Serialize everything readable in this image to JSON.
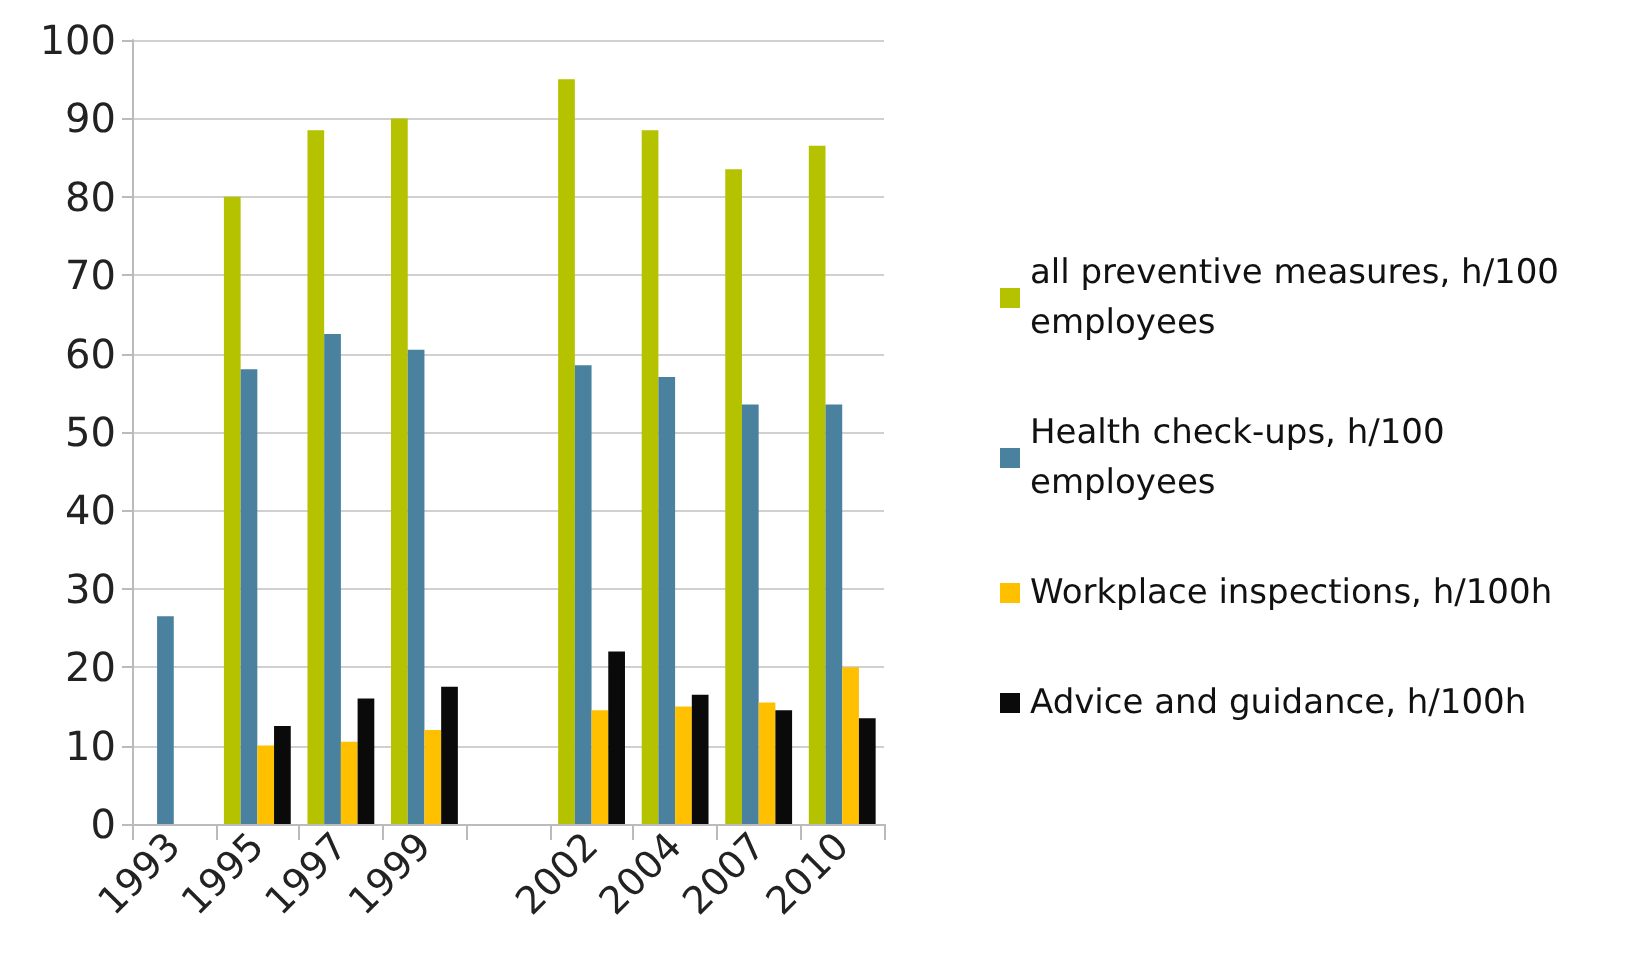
{
  "chart_data": {
    "type": "bar",
    "categories": [
      "1993",
      "1995",
      "1997",
      "1999",
      null,
      "2002",
      "2004",
      "2007",
      "2010"
    ],
    "series": [
      {
        "name": "all preventive measures, h/100 employees",
        "color": "#b5c200",
        "values": [
          null,
          80,
          88.5,
          90,
          null,
          95,
          88.5,
          83.5,
          86.5
        ]
      },
      {
        "name": "Health check-ups, h/100 employees",
        "color": "#4a819e",
        "values": [
          26.5,
          58,
          62.5,
          60.5,
          null,
          58.5,
          57,
          53.5,
          53.5
        ]
      },
      {
        "name": "Workplace inspections, h/100h",
        "color": "#ffc000",
        "values": [
          null,
          10,
          10.5,
          12,
          null,
          14.5,
          15,
          15.5,
          20
        ]
      },
      {
        "name": "Advice and guidance, h/100h",
        "color": "#0a0a0a",
        "values": [
          null,
          12.5,
          16,
          17.5,
          null,
          22,
          16.5,
          14.5,
          13.5
        ]
      }
    ],
    "ylim": [
      0,
      100
    ],
    "yticks": [
      0,
      10,
      20,
      30,
      40,
      50,
      60,
      70,
      80,
      90,
      100
    ],
    "grid": "y",
    "legend": "right"
  }
}
